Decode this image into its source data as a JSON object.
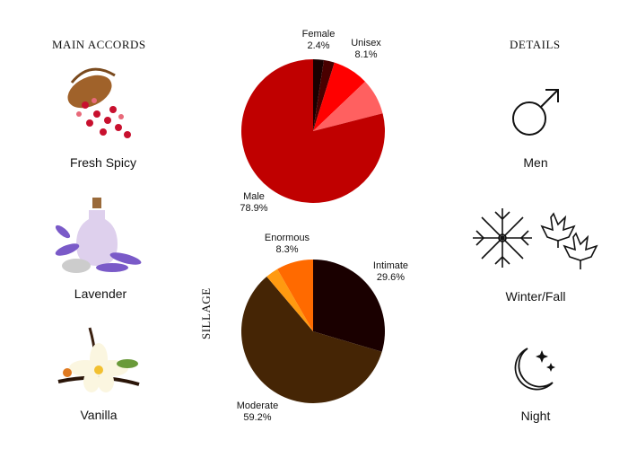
{
  "headings": {
    "accords": "MAIN ACCORDS",
    "details": "DETAILS",
    "sillage": "SILLAGE"
  },
  "accords": [
    {
      "label": "Fresh Spicy",
      "icon": "pink-peppercorn-basket-image"
    },
    {
      "label": "Lavender",
      "icon": "lavender-bottle-image"
    },
    {
      "label": "Vanilla",
      "icon": "vanilla-flower-image"
    }
  ],
  "details": [
    {
      "label": "Men",
      "icon": "male-symbol-icon"
    },
    {
      "label": "Winter/Fall",
      "icon": "snowflake-maple-leaves-icon"
    },
    {
      "label": "Night",
      "icon": "moon-stars-icon"
    }
  ],
  "chart_data": [
    {
      "type": "pie",
      "slices": [
        {
          "value": 2.4,
          "color": "#1a0000"
        },
        {
          "value": 2.4,
          "color": "#4a0000"
        },
        {
          "value": 8.1,
          "color": "#ff0000"
        },
        {
          "value": 8.1,
          "color": "#ff6060"
        },
        {
          "value": 78.9,
          "color": "#c00000"
        }
      ],
      "labels": [
        {
          "name": "Female",
          "pct": "2.4%"
        },
        {
          "name": "Unisex",
          "pct": "8.1%"
        },
        {
          "name": "Male",
          "pct": "78.9%"
        }
      ]
    },
    {
      "type": "pie",
      "slices": [
        {
          "value": 29.6,
          "color": "#1a0000"
        },
        {
          "value": 59.2,
          "color": "#452505"
        },
        {
          "value": 2.9,
          "color": "#ff9a10"
        },
        {
          "value": 8.3,
          "color": "#ff6a00"
        }
      ],
      "labels": [
        {
          "name": "Intimate",
          "pct": "29.6%"
        },
        {
          "name": "Moderate",
          "pct": "59.2%"
        },
        {
          "name": "Enormous",
          "pct": "8.3%"
        }
      ]
    }
  ]
}
